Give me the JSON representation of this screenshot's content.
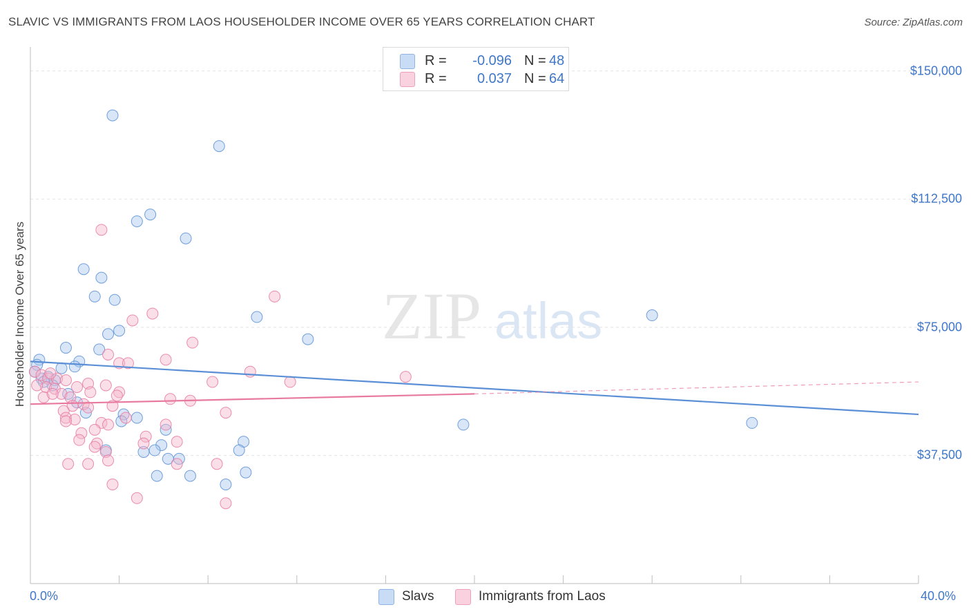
{
  "header": {
    "title": "SLAVIC VS IMMIGRANTS FROM LAOS HOUSEHOLDER INCOME OVER 65 YEARS CORRELATION CHART",
    "source": "Source: ZipAtlas.com"
  },
  "watermark": {
    "zip": "ZIP",
    "atlas": "atlas"
  },
  "legend": {
    "rows": [
      {
        "r_label": "R =",
        "r_value": "-0.096",
        "n_label": "N =",
        "n_value": "48",
        "color": "#a9c8ee"
      },
      {
        "r_label": "R =",
        "r_value": "0.037",
        "n_label": "N =",
        "n_value": "64",
        "color": "#f5b6cb"
      }
    ]
  },
  "bottom_legend": {
    "series1": "Slavs",
    "series2": "Immigrants from Laos"
  },
  "chart_data": {
    "type": "scatter",
    "title": "SLAVIC VS IMMIGRANTS FROM LAOS HOUSEHOLDER INCOME OVER 65 YEARS CORRELATION CHART",
    "xlabel": "",
    "ylabel": "Householder Income Over 65 years",
    "xlim": [
      0,
      40
    ],
    "ylim": [
      0,
      155000
    ],
    "x_tick_labels": [
      "0.0%",
      "40.0%"
    ],
    "y_ticks": [
      {
        "value": 37500,
        "label": "$37,500"
      },
      {
        "value": 75000,
        "label": "$75,000"
      },
      {
        "value": 112500,
        "label": "$112,500"
      },
      {
        "value": 150000,
        "label": "$150,000"
      }
    ],
    "grid": true,
    "legend_position": "top-center",
    "series": [
      {
        "name": "Slavs",
        "color": "#5b8fd6",
        "fill": "#a9c8ee",
        "r": -0.096,
        "n": 48,
        "trend": {
          "x0": 0.0,
          "y0": 65000,
          "x1": 40.0,
          "y1": 49500
        },
        "points": [
          [
            3.7,
            137000
          ],
          [
            8.5,
            128000
          ],
          [
            5.4,
            108000
          ],
          [
            4.8,
            106000
          ],
          [
            7.0,
            101000
          ],
          [
            2.4,
            92000
          ],
          [
            3.2,
            89500
          ],
          [
            2.9,
            84000
          ],
          [
            3.8,
            83000
          ],
          [
            10.2,
            78000
          ],
          [
            28.0,
            78500
          ],
          [
            12.5,
            71500
          ],
          [
            4.0,
            74000
          ],
          [
            3.5,
            73000
          ],
          [
            1.6,
            69000
          ],
          [
            3.1,
            68500
          ],
          [
            0.4,
            65500
          ],
          [
            2.2,
            65000
          ],
          [
            0.3,
            64000
          ],
          [
            1.4,
            63000
          ],
          [
            2.0,
            63500
          ],
          [
            0.8,
            60500
          ],
          [
            1.1,
            59500
          ],
          [
            0.5,
            60000
          ],
          [
            1.0,
            58000
          ],
          [
            1.7,
            55500
          ],
          [
            2.1,
            53000
          ],
          [
            2.5,
            50000
          ],
          [
            4.2,
            49500
          ],
          [
            4.8,
            48500
          ],
          [
            4.1,
            47500
          ],
          [
            19.5,
            46500
          ],
          [
            32.5,
            47000
          ],
          [
            6.1,
            45000
          ],
          [
            9.6,
            41500
          ],
          [
            5.9,
            40500
          ],
          [
            3.4,
            39000
          ],
          [
            5.1,
            38500
          ],
          [
            5.6,
            39000
          ],
          [
            9.4,
            39000
          ],
          [
            6.2,
            36500
          ],
          [
            6.7,
            36500
          ],
          [
            5.7,
            31500
          ],
          [
            7.2,
            31500
          ],
          [
            8.8,
            29000
          ],
          [
            9.7,
            32500
          ],
          [
            0.2,
            62000
          ],
          [
            0.6,
            59000
          ]
        ]
      },
      {
        "name": "Immigrants from Laos",
        "color": "#e87aa0",
        "fill": "#f5b6cb",
        "r": 0.037,
        "n": 64,
        "trend": {
          "x0": 0.0,
          "y0": 52500,
          "x1": 20.0,
          "y1": 55500
        },
        "trend_dashed": {
          "x0": 20.0,
          "y0": 55500,
          "x1": 40.0,
          "y1": 59000
        },
        "points": [
          [
            3.2,
            103500
          ],
          [
            11.0,
            84000
          ],
          [
            5.5,
            79000
          ],
          [
            4.6,
            77000
          ],
          [
            7.3,
            70500
          ],
          [
            3.5,
            67000
          ],
          [
            6.1,
            65500
          ],
          [
            4.0,
            64500
          ],
          [
            4.4,
            64500
          ],
          [
            9.9,
            62000
          ],
          [
            16.9,
            60500
          ],
          [
            0.2,
            62000
          ],
          [
            0.5,
            61000
          ],
          [
            0.8,
            60000
          ],
          [
            1.2,
            60000
          ],
          [
            1.6,
            59500
          ],
          [
            8.2,
            59000
          ],
          [
            11.7,
            59000
          ],
          [
            2.6,
            58500
          ],
          [
            3.4,
            58000
          ],
          [
            0.7,
            57500
          ],
          [
            1.1,
            57000
          ],
          [
            2.1,
            57500
          ],
          [
            4.0,
            56000
          ],
          [
            2.7,
            56000
          ],
          [
            1.4,
            55500
          ],
          [
            3.9,
            55000
          ],
          [
            6.3,
            54000
          ],
          [
            7.2,
            53500
          ],
          [
            1.8,
            54500
          ],
          [
            0.6,
            54500
          ],
          [
            1.0,
            55500
          ],
          [
            2.4,
            52500
          ],
          [
            1.9,
            52000
          ],
          [
            3.7,
            52000
          ],
          [
            2.6,
            51500
          ],
          [
            1.5,
            50500
          ],
          [
            8.8,
            50000
          ],
          [
            1.6,
            48500
          ],
          [
            2.0,
            48000
          ],
          [
            4.3,
            48500
          ],
          [
            1.6,
            47500
          ],
          [
            3.2,
            47000
          ],
          [
            3.5,
            46500
          ],
          [
            6.1,
            46500
          ],
          [
            2.3,
            44000
          ],
          [
            2.9,
            45000
          ],
          [
            5.2,
            43000
          ],
          [
            6.6,
            41500
          ],
          [
            2.2,
            42000
          ],
          [
            3.0,
            41000
          ],
          [
            5.1,
            41000
          ],
          [
            2.9,
            40000
          ],
          [
            3.4,
            38500
          ],
          [
            3.5,
            36000
          ],
          [
            1.7,
            35000
          ],
          [
            2.6,
            35000
          ],
          [
            6.6,
            35000
          ],
          [
            8.4,
            35000
          ],
          [
            3.7,
            29000
          ],
          [
            4.8,
            25000
          ],
          [
            8.8,
            23500
          ],
          [
            0.3,
            58000
          ],
          [
            0.9,
            61500
          ]
        ]
      }
    ]
  }
}
